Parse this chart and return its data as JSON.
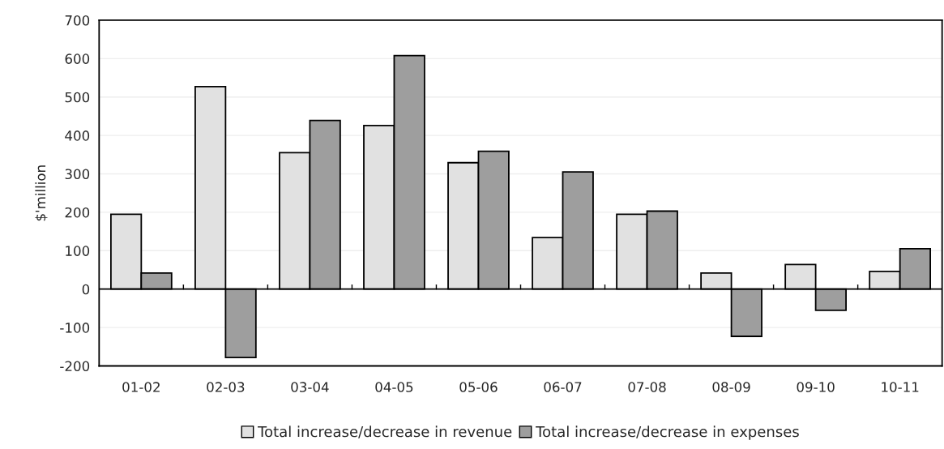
{
  "chart_data": {
    "type": "bar",
    "ylabel": "$'million",
    "categories": [
      "01-02",
      "02-03",
      "03-04",
      "04-05",
      "05-06",
      "06-07",
      "07-08",
      "08-09",
      "09-10",
      "10-11"
    ],
    "series": [
      {
        "name": "Total increase/decrease in revenue",
        "color": "#e1e1e1",
        "values": [
          195,
          527,
          355,
          426,
          329,
          134,
          195,
          42,
          64,
          46
        ]
      },
      {
        "name": "Total increase/decrease in expenses",
        "color": "#9e9e9e",
        "values": [
          42,
          -178,
          439,
          608,
          359,
          305,
          203,
          -123,
          -55,
          105
        ]
      }
    ],
    "ylim": [
      -200,
      700
    ],
    "yticks": [
      -200,
      -100,
      0,
      100,
      200,
      300,
      400,
      500,
      600,
      700
    ],
    "grid": "y",
    "legend": "bottom"
  }
}
